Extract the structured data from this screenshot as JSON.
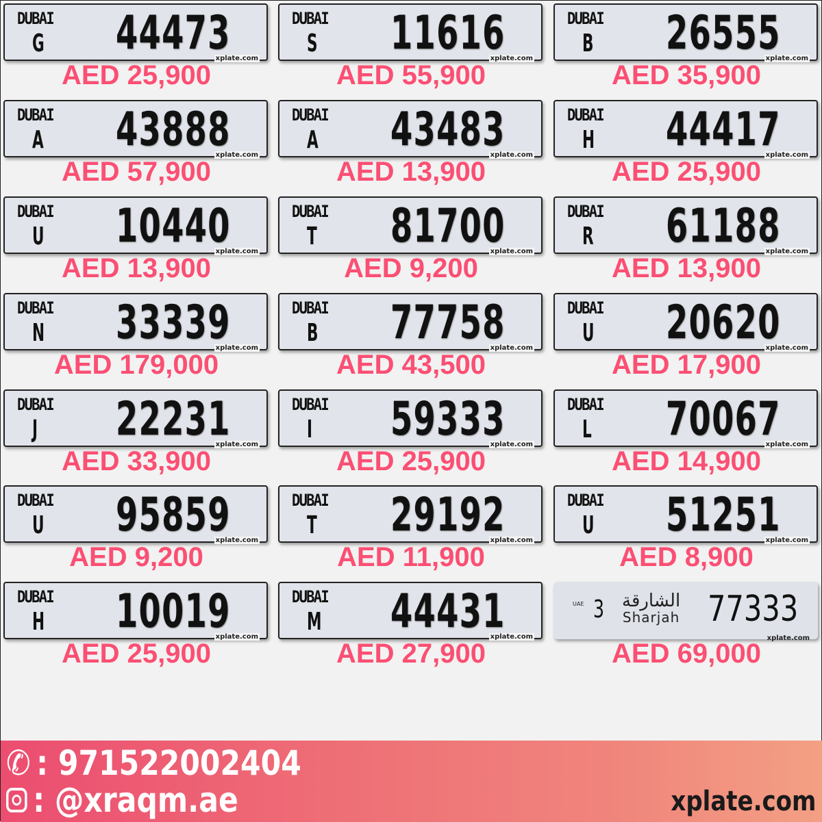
{
  "plates": [
    {
      "emirate": "DUBAI",
      "code": "G",
      "number": "44473",
      "price": "AED 25,900"
    },
    {
      "emirate": "DUBAI",
      "code": "S",
      "number": "11616",
      "price": "AED 55,900"
    },
    {
      "emirate": "DUBAI",
      "code": "B",
      "number": "26555",
      "price": "AED 35,900"
    },
    {
      "emirate": "DUBAI",
      "code": "A",
      "number": "43888",
      "price": "AED 57,900"
    },
    {
      "emirate": "DUBAI",
      "code": "A",
      "number": "43483",
      "price": "AED 13,900"
    },
    {
      "emirate": "DUBAI",
      "code": "H",
      "number": "44417",
      "price": "AED 25,900"
    },
    {
      "emirate": "DUBAI",
      "code": "U",
      "number": "10440",
      "price": "AED 13,900"
    },
    {
      "emirate": "DUBAI",
      "code": "T",
      "number": "81700",
      "price": "AED 9,200"
    },
    {
      "emirate": "DUBAI",
      "code": "R",
      "number": "61188",
      "price": "AED 13,900"
    },
    {
      "emirate": "DUBAI",
      "code": "N",
      "number": "33339",
      "price": "AED 179,000"
    },
    {
      "emirate": "DUBAI",
      "code": "B",
      "number": "77758",
      "price": "AED 43,500"
    },
    {
      "emirate": "DUBAI",
      "code": "U",
      "number": "20620",
      "price": "AED 17,900"
    },
    {
      "emirate": "DUBAI",
      "code": "J",
      "number": "22231",
      "price": "AED 33,900"
    },
    {
      "emirate": "DUBAI",
      "code": "I",
      "number": "59333",
      "price": "AED 25,900"
    },
    {
      "emirate": "DUBAI",
      "code": "L",
      "number": "70067",
      "price": "AED 14,900"
    },
    {
      "emirate": "DUBAI",
      "code": "U",
      "number": "95859",
      "price": "AED 9,200"
    },
    {
      "emirate": "DUBAI",
      "code": "T",
      "number": "29192",
      "price": "AED 11,900"
    },
    {
      "emirate": "DUBAI",
      "code": "U",
      "number": "51251",
      "price": "AED 8,900"
    },
    {
      "emirate": "DUBAI",
      "code": "H",
      "number": "10019",
      "price": "AED 25,900"
    },
    {
      "emirate": "DUBAI",
      "code": "M",
      "number": "44431",
      "price": "AED 27,900"
    },
    {
      "emirate": "Sharjah",
      "emirate_ar": "الشارقة",
      "country": "UAE",
      "code": "3",
      "number": "77333",
      "price": "AED 69,000"
    }
  ],
  "plate_watermark": "xplate.com",
  "footer": {
    "phone": ": 971522002404",
    "instagram": ": @xraqm.ae",
    "site": "xplate.com"
  },
  "colors": {
    "price": "#fb4f73",
    "plate": "#e1e4ea"
  }
}
